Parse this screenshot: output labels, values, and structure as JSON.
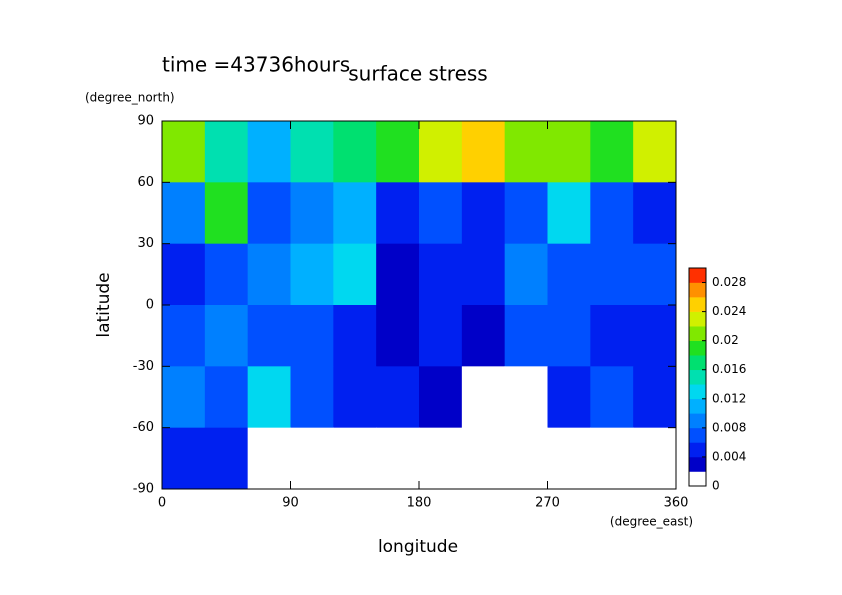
{
  "chart_data": {
    "type": "contour",
    "title": "surface stress",
    "subtitle": "time =43736hours",
    "ylabel": "latitude",
    "yunit": "(degree_north)",
    "xlabel": "longitude",
    "xunit": "(degree_east)",
    "xlim": [
      0,
      360
    ],
    "xticks": [
      0,
      90,
      180,
      270,
      360
    ],
    "ylim": [
      -90,
      90
    ],
    "yticks": [
      -90,
      -60,
      -30,
      0,
      30,
      60,
      90
    ],
    "x": [
      15,
      45,
      75,
      105,
      135,
      165,
      195,
      225,
      255,
      285,
      315,
      345
    ],
    "y": [
      75,
      45,
      15,
      -15,
      -45,
      -75
    ],
    "z": [
      [
        0.02,
        0.014,
        0.01,
        0.014,
        0.016,
        0.018,
        0.022,
        0.024,
        0.02,
        0.02,
        0.018,
        0.022
      ],
      [
        0.008,
        0.018,
        0.006,
        0.008,
        0.01,
        0.004,
        0.006,
        0.004,
        0.006,
        0.012,
        0.006,
        0.004
      ],
      [
        0.004,
        0.006,
        0.008,
        0.01,
        0.012,
        0.002,
        0.004,
        0.004,
        0.008,
        0.006,
        0.006,
        0.006
      ],
      [
        0.006,
        0.008,
        0.006,
        0.006,
        0.004,
        0.003,
        0.004,
        0.002,
        0.006,
        0.006,
        0.004,
        0.004
      ],
      [
        0.008,
        0.006,
        0.012,
        0.006,
        0.004,
        0.004,
        0.002,
        0.001,
        0.001,
        0.004,
        0.006,
        0.004
      ],
      [
        0.004,
        0.004,
        0.001,
        0.001,
        0.001,
        0.001,
        0.001,
        0.001,
        0.001,
        0.001,
        0.001,
        0.001
      ]
    ],
    "clim": [
      0,
      0.03
    ],
    "cticks": [
      0,
      0.004,
      0.008,
      0.012,
      0.016,
      0.02,
      0.024,
      0.028
    ],
    "colors": [
      "#ffffff",
      "#0000c8",
      "#0020f0",
      "#0050ff",
      "#0080ff",
      "#00b0ff",
      "#00d8f0",
      "#00e0b0",
      "#00e070",
      "#20e020",
      "#80e800",
      "#d0f000",
      "#ffd000",
      "#ff9000",
      "#ff3000"
    ]
  }
}
